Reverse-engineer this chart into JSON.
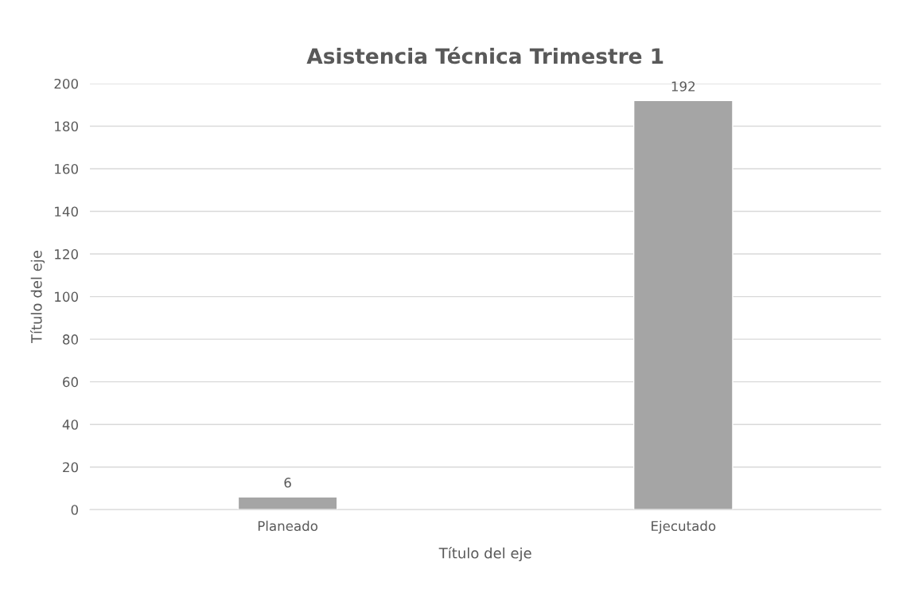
{
  "chart_data": {
    "type": "bar",
    "title": "Asistencia Técnica Trimestre 1",
    "xlabel": "Título del eje",
    "ylabel": "Título del eje",
    "categories": [
      "Planeado",
      "Ejecutado"
    ],
    "values": [
      6,
      192
    ],
    "color": "#a5a5a5",
    "ylim": [
      0,
      200
    ],
    "yticks": [
      0,
      20,
      40,
      60,
      80,
      100,
      120,
      140,
      160,
      180,
      200
    ],
    "grid": "y",
    "data_labels": true
  }
}
